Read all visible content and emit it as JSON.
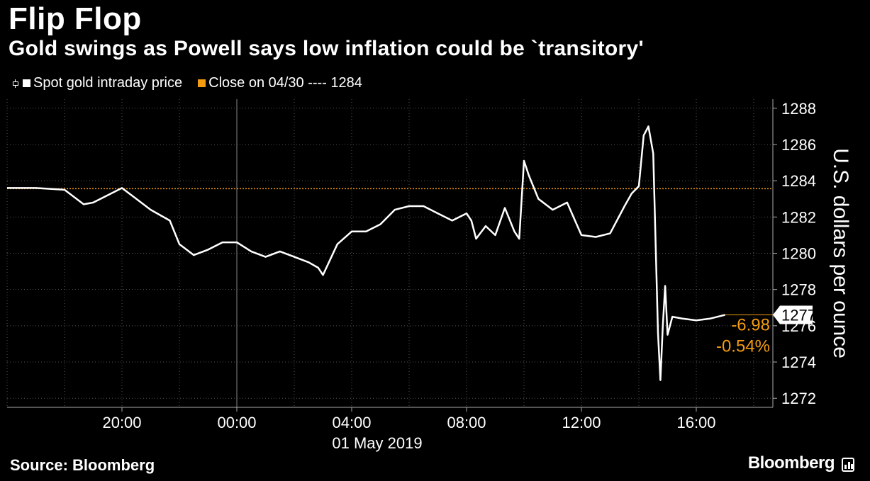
{
  "header": {
    "title": "Flip Flop",
    "subtitle": "Gold swings as Powell says low inflation could be `transitory'"
  },
  "legend": {
    "series_label": "Spot gold intraday price",
    "close_label": "Close on 04/30 ---- 1284"
  },
  "colors": {
    "background": "#000000",
    "series": "#ffffff",
    "close_line": "#f39c12",
    "grid": "#555555"
  },
  "chart_data": {
    "type": "line",
    "ylabel": "U.S. dollars per ounce",
    "x_date_label": "01 May 2019",
    "x_ticks": [
      "20:00",
      "00:00",
      "04:00",
      "08:00",
      "12:00",
      "16:00"
    ],
    "y_ticks": [
      1272,
      1274,
      1276,
      1278,
      1280,
      1282,
      1284,
      1286,
      1288
    ],
    "ylim": [
      1271.5,
      1288.5
    ],
    "xlim": [
      "04/30 16:00",
      "05/01 18:40"
    ],
    "grid": true,
    "legend_position": "top-left",
    "reference_line": {
      "name": "Close on 04/30",
      "value": 1283.56
    },
    "last_value_label": "1277",
    "change_label": "-6.98",
    "change_pct_label": "-0.54%",
    "series": [
      {
        "name": "Spot gold intraday price",
        "x": [
          "04/30 16:00",
          "04/30 17:00",
          "04/30 18:00",
          "04/30 18:40",
          "04/30 19:00",
          "04/30 19:30",
          "04/30 20:00",
          "04/30 20:30",
          "04/30 21:00",
          "04/30 21:40",
          "04/30 22:00",
          "04/30 22:30",
          "04/30 23:00",
          "04/30 23:30",
          "05/01 00:00",
          "05/01 00:30",
          "05/01 01:00",
          "05/01 01:30",
          "05/01 02:00",
          "05/01 02:30",
          "05/01 02:50",
          "05/01 03:00",
          "05/01 03:30",
          "05/01 04:00",
          "05/01 04:30",
          "05/01 05:00",
          "05/01 05:30",
          "05/01 06:00",
          "05/01 06:30",
          "05/01 07:00",
          "05/01 07:30",
          "05/01 08:00",
          "05/01 08:10",
          "05/01 08:20",
          "05/01 08:40",
          "05/01 09:00",
          "05/01 09:20",
          "05/01 09:40",
          "05/01 09:50",
          "05/01 10:00",
          "05/01 10:10",
          "05/01 10:30",
          "05/01 11:00",
          "05/01 11:30",
          "05/01 12:00",
          "05/01 12:30",
          "05/01 13:00",
          "05/01 13:30",
          "05/01 13:45",
          "05/01 14:00",
          "05/01 14:10",
          "05/01 14:20",
          "05/01 14:30",
          "05/01 14:40",
          "05/01 14:45",
          "05/01 14:50",
          "05/01 14:55",
          "05/01 15:00",
          "05/01 15:10",
          "05/01 15:30",
          "05/01 16:00",
          "05/01 16:30",
          "05/01 17:00"
        ],
        "y": [
          1283.6,
          1283.6,
          1283.5,
          1282.7,
          1282.8,
          1283.2,
          1283.6,
          1283.0,
          1282.4,
          1281.8,
          1280.5,
          1279.9,
          1280.2,
          1280.6,
          1280.6,
          1280.1,
          1279.8,
          1280.1,
          1279.8,
          1279.5,
          1279.2,
          1278.8,
          1280.5,
          1281.2,
          1281.2,
          1281.6,
          1282.4,
          1282.6,
          1282.6,
          1282.2,
          1281.8,
          1282.2,
          1281.8,
          1280.8,
          1281.5,
          1281.0,
          1282.5,
          1281.2,
          1280.8,
          1285.1,
          1284.3,
          1283.0,
          1282.4,
          1282.8,
          1281.0,
          1280.9,
          1281.1,
          1282.6,
          1283.3,
          1283.7,
          1286.5,
          1287.0,
          1285.5,
          1275.6,
          1273.0,
          1276.0,
          1278.2,
          1275.5,
          1276.5,
          1276.4,
          1276.3,
          1276.4,
          1276.6
        ]
      }
    ]
  },
  "footer": {
    "source": "Source: Bloomberg",
    "brand": "Bloomberg"
  }
}
